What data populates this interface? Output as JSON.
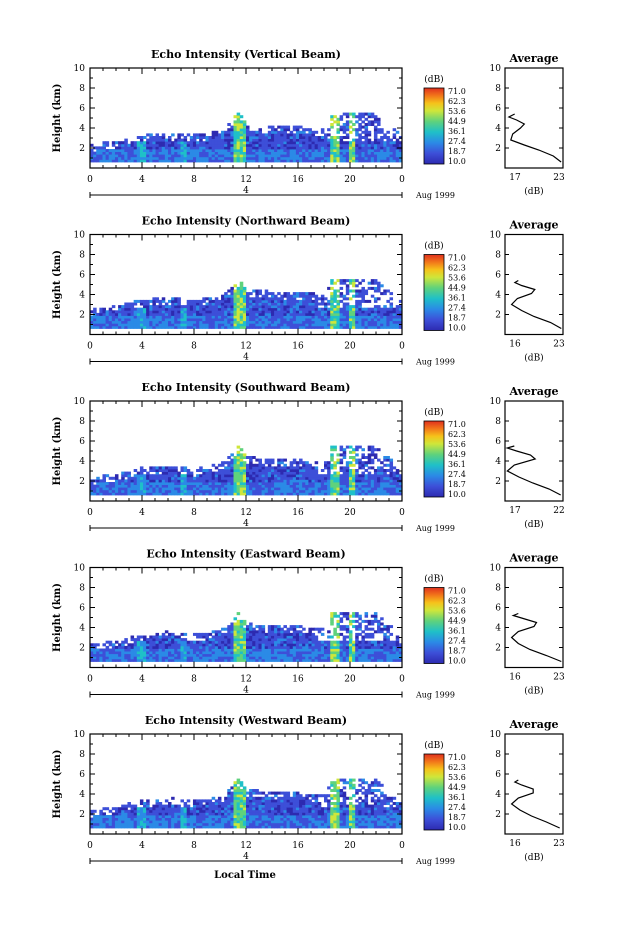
{
  "figure": {
    "bottom_xlabel": "Local Time",
    "date_label": "Aug 1999",
    "day_label": "4"
  },
  "colorbar": {
    "unit": "(dB)",
    "ticks": [
      "71.0",
      "62.3",
      "53.6",
      "44.9",
      "36.1",
      "27.4",
      "18.7",
      "10.0"
    ],
    "colors": [
      "#e0301e",
      "#f2761a",
      "#f6c21a",
      "#cfe63a",
      "#5fd27c",
      "#1fc0c8",
      "#2b8ae6",
      "#3d4fd8",
      "#2d2ab0"
    ]
  },
  "chart_data": [
    {
      "type": "heatmap",
      "title": "Echo Intensity (Vertical Beam)",
      "ylabel": "Height (km)",
      "x_ticks": [
        "0",
        "4",
        "8",
        "12",
        "16",
        "20",
        "0"
      ],
      "y_ticks": [
        "2",
        "4",
        "6",
        "8",
        "10"
      ],
      "xlim": [
        0,
        24
      ],
      "ylim": [
        0,
        10
      ],
      "echo_top_km": [
        [
          0,
          2.3
        ],
        [
          2,
          2.6
        ],
        [
          4,
          3.2
        ],
        [
          6,
          3.4
        ],
        [
          8,
          3.2
        ],
        [
          10,
          3.6
        ],
        [
          11.3,
          5.4
        ],
        [
          12,
          4.2
        ],
        [
          14,
          4.0
        ],
        [
          16,
          4.0
        ],
        [
          18,
          3.8
        ],
        [
          18.5,
          5.4
        ],
        [
          22,
          5.3
        ],
        [
          24,
          3.0
        ]
      ],
      "average": {
        "title": "Average",
        "xlabel": "(dB)",
        "x_ticks": [
          "17",
          "23"
        ],
        "y_ticks": [
          "2",
          "4",
          "6",
          "8",
          "10"
        ],
        "profile": [
          [
            22.8,
            0.6
          ],
          [
            22.0,
            1.2
          ],
          [
            20.5,
            1.8
          ],
          [
            19.0,
            2.3
          ],
          [
            17.6,
            2.8
          ],
          [
            17.8,
            3.4
          ],
          [
            18.6,
            4.0
          ],
          [
            19.0,
            4.4
          ],
          [
            18.2,
            4.8
          ],
          [
            17.4,
            5.1
          ],
          [
            17.8,
            5.3
          ],
          [
            18.0,
            5.4
          ]
        ]
      }
    },
    {
      "type": "heatmap",
      "title": "Echo Intensity (Northward Beam)",
      "ylabel": "Height (km)",
      "x_ticks": [
        "0",
        "4",
        "8",
        "12",
        "16",
        "20",
        "0"
      ],
      "y_ticks": [
        "2",
        "4",
        "6",
        "8",
        "10"
      ],
      "xlim": [
        0,
        24
      ],
      "ylim": [
        0,
        10
      ],
      "echo_top_km": [
        [
          0,
          2.4
        ],
        [
          2,
          2.8
        ],
        [
          4,
          3.4
        ],
        [
          6,
          3.6
        ],
        [
          8,
          3.3
        ],
        [
          10,
          3.8
        ],
        [
          11.3,
          5.4
        ],
        [
          12,
          4.4
        ],
        [
          14,
          4.2
        ],
        [
          16,
          4.1
        ],
        [
          18,
          3.9
        ],
        [
          18.5,
          5.4
        ],
        [
          22,
          5.3
        ],
        [
          24,
          3.0
        ]
      ],
      "average": {
        "title": "Average",
        "xlabel": "(dB)",
        "x_ticks": [
          "16",
          "23"
        ],
        "y_ticks": [
          "2",
          "4",
          "6",
          "8",
          "10"
        ],
        "profile": [
          [
            22.8,
            0.6
          ],
          [
            21.5,
            1.2
          ],
          [
            19.5,
            1.8
          ],
          [
            18.0,
            2.4
          ],
          [
            16.8,
            3.0
          ],
          [
            17.5,
            3.6
          ],
          [
            19.2,
            4.1
          ],
          [
            19.6,
            4.5
          ],
          [
            18.0,
            4.9
          ],
          [
            17.2,
            5.2
          ],
          [
            17.6,
            5.4
          ]
        ]
      }
    },
    {
      "type": "heatmap",
      "title": "Echo Intensity (Southward Beam)",
      "ylabel": "Height (km)",
      "x_ticks": [
        "0",
        "4",
        "8",
        "12",
        "16",
        "20",
        "0"
      ],
      "y_ticks": [
        "2",
        "4",
        "6",
        "8",
        "10"
      ],
      "xlim": [
        0,
        24
      ],
      "ylim": [
        0,
        10
      ],
      "echo_top_km": [
        [
          0,
          2.3
        ],
        [
          2,
          2.6
        ],
        [
          4,
          3.3
        ],
        [
          6,
          3.4
        ],
        [
          8,
          3.1
        ],
        [
          10,
          3.7
        ],
        [
          11.3,
          5.4
        ],
        [
          12,
          4.3
        ],
        [
          14,
          4.1
        ],
        [
          16,
          4.0
        ],
        [
          18,
          3.8
        ],
        [
          18.5,
          5.4
        ],
        [
          22,
          5.3
        ],
        [
          24,
          3.0
        ]
      ],
      "average": {
        "title": "Average",
        "xlabel": "(dB)",
        "x_ticks": [
          "17",
          "22"
        ],
        "y_ticks": [
          "2",
          "4",
          "6",
          "8",
          "10"
        ],
        "profile": [
          [
            21.8,
            0.6
          ],
          [
            20.8,
            1.2
          ],
          [
            19.4,
            1.8
          ],
          [
            18.2,
            2.4
          ],
          [
            17.2,
            3.0
          ],
          [
            17.8,
            3.6
          ],
          [
            19.6,
            4.2
          ],
          [
            19.2,
            4.6
          ],
          [
            18.0,
            5.0
          ],
          [
            17.2,
            5.3
          ],
          [
            17.8,
            5.5
          ]
        ]
      }
    },
    {
      "type": "heatmap",
      "title": "Echo Intensity (Eastward Beam)",
      "ylabel": "Height (km)",
      "x_ticks": [
        "0",
        "4",
        "8",
        "12",
        "16",
        "20",
        "0"
      ],
      "y_ticks": [
        "2",
        "4",
        "6",
        "8",
        "10"
      ],
      "xlim": [
        0,
        24
      ],
      "ylim": [
        0,
        10
      ],
      "echo_top_km": [
        [
          0,
          2.2
        ],
        [
          2,
          2.6
        ],
        [
          4,
          3.3
        ],
        [
          6,
          3.5
        ],
        [
          8,
          3.2
        ],
        [
          10,
          3.7
        ],
        [
          11.3,
          5.4
        ],
        [
          12,
          4.3
        ],
        [
          14,
          4.1
        ],
        [
          16,
          4.0
        ],
        [
          18,
          3.8
        ],
        [
          18.5,
          5.4
        ],
        [
          22,
          5.3
        ],
        [
          24,
          2.8
        ]
      ],
      "average": {
        "title": "Average",
        "xlabel": "(dB)",
        "x_ticks": [
          "16",
          "23"
        ],
        "y_ticks": [
          "2",
          "4",
          "6",
          "8",
          "10"
        ],
        "profile": [
          [
            22.8,
            0.6
          ],
          [
            21.0,
            1.2
          ],
          [
            19.0,
            1.8
          ],
          [
            17.6,
            2.4
          ],
          [
            16.8,
            3.0
          ],
          [
            17.6,
            3.6
          ],
          [
            19.5,
            4.1
          ],
          [
            19.8,
            4.5
          ],
          [
            18.2,
            4.9
          ],
          [
            17.0,
            5.2
          ],
          [
            17.6,
            5.4
          ]
        ]
      }
    },
    {
      "type": "heatmap",
      "title": "Echo Intensity (Westward Beam)",
      "ylabel": "Height (km)",
      "x_ticks": [
        "0",
        "4",
        "8",
        "12",
        "16",
        "20",
        "0"
      ],
      "y_ticks": [
        "2",
        "4",
        "6",
        "8",
        "10"
      ],
      "xlim": [
        0,
        24
      ],
      "ylim": [
        0,
        10
      ],
      "echo_top_km": [
        [
          0,
          2.3
        ],
        [
          2,
          2.7
        ],
        [
          4,
          3.3
        ],
        [
          6,
          3.5
        ],
        [
          8,
          3.2
        ],
        [
          10,
          3.7
        ],
        [
          11.3,
          5.4
        ],
        [
          12,
          4.4
        ],
        [
          14,
          4.1
        ],
        [
          16,
          4.0
        ],
        [
          18,
          3.8
        ],
        [
          18.5,
          5.4
        ],
        [
          22,
          5.3
        ],
        [
          24,
          2.9
        ]
      ],
      "average": {
        "title": "Average",
        "xlabel": "(dB)",
        "x_ticks": [
          "16",
          "23"
        ],
        "y_ticks": [
          "2",
          "4",
          "6",
          "8",
          "10"
        ],
        "profile": [
          [
            22.6,
            0.6
          ],
          [
            21.0,
            1.2
          ],
          [
            19.2,
            1.8
          ],
          [
            17.8,
            2.4
          ],
          [
            16.8,
            3.0
          ],
          [
            17.6,
            3.6
          ],
          [
            19.4,
            4.1
          ],
          [
            19.4,
            4.5
          ],
          [
            18.0,
            4.9
          ],
          [
            17.2,
            5.2
          ],
          [
            17.6,
            5.4
          ]
        ]
      }
    }
  ]
}
